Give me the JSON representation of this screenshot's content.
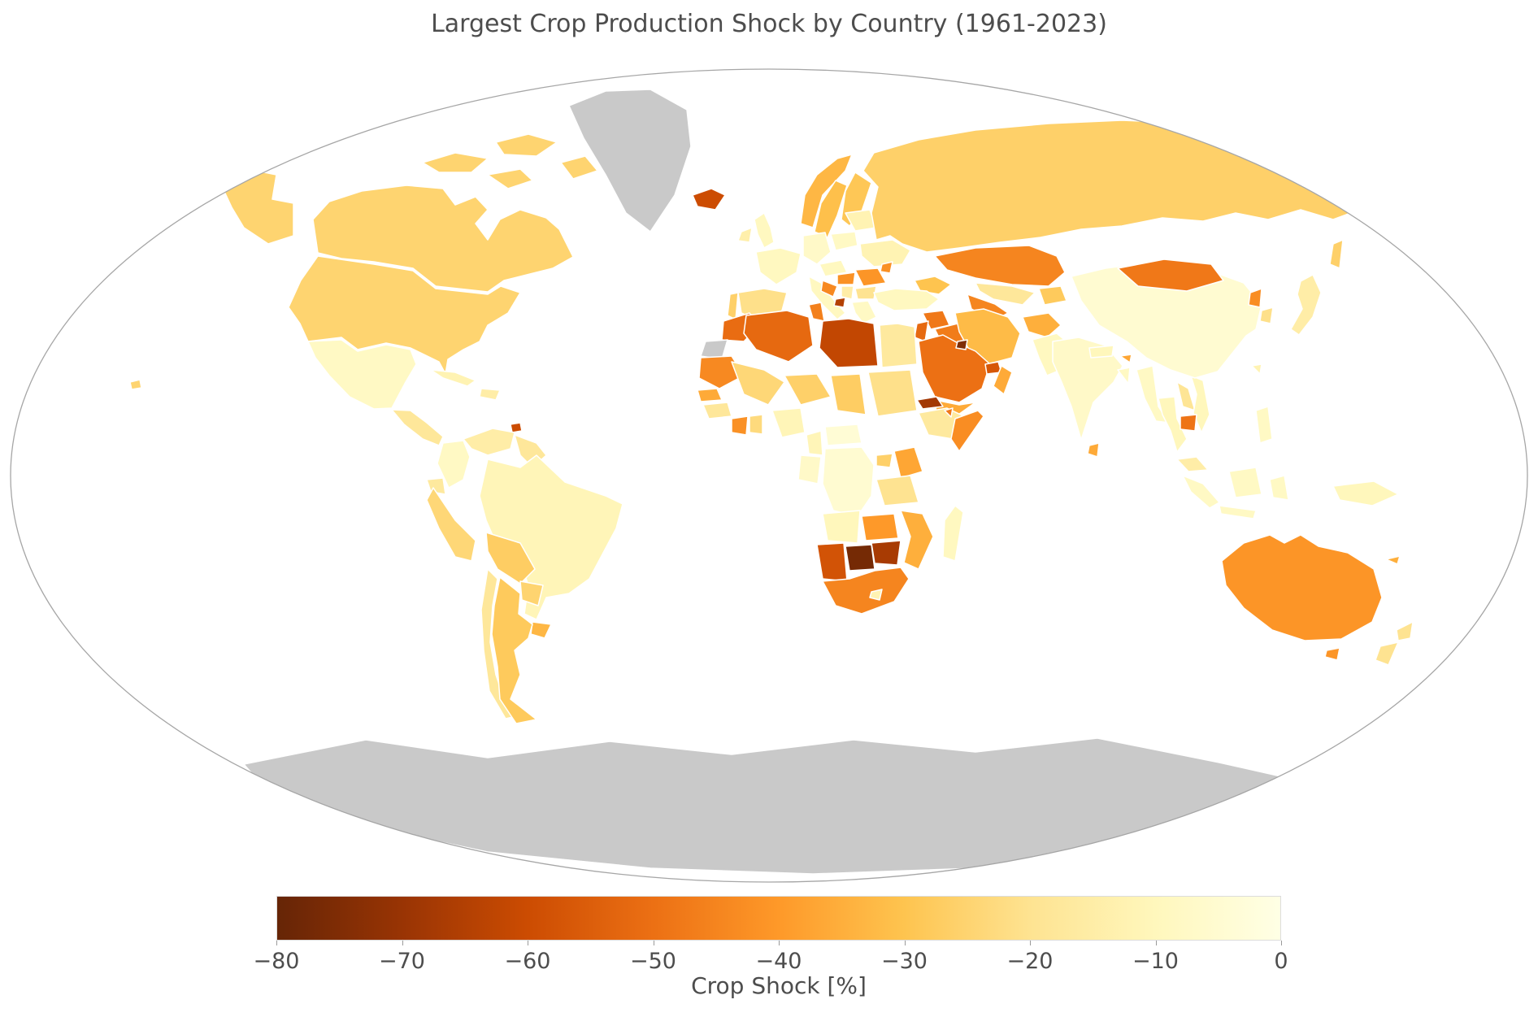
{
  "chart_data": {
    "type": "choropleth_map",
    "title": "Largest Crop Production Shock by Country (1961-2023)",
    "projection": "robinson",
    "units": "percent",
    "value_range": [
      -80,
      0
    ],
    "colorbar": {
      "label": "Crop Shock [%]",
      "orientation": "horizontal",
      "tick_labels": [
        "−80",
        "−70",
        "−60",
        "−50",
        "−40",
        "−30",
        "−20",
        "−10",
        "0"
      ]
    },
    "colormap": {
      "name": "YlOrBr reversed (0 = light cream, -80 = dark brown)",
      "anchors_light_to_dark": [
        "#ffffe5",
        "#fff7bc",
        "#fee391",
        "#fec44f",
        "#fe9929",
        "#ec7014",
        "#cc4c02",
        "#993404",
        "#662506"
      ],
      "no_data_color": "#c9c9c9",
      "ocean_color": "#ffffff",
      "border_color": "#ffffff"
    },
    "countries": {
      "united_states": -25,
      "canada": -25,
      "mexico": -8,
      "guatemala": -15,
      "central_america": -18,
      "cuba": -12,
      "hispaniola": -15,
      "caribbean_small": -60,
      "greenland": null,
      "iceland": -60,
      "venezuela": -15,
      "colombia": -8,
      "guyanas": -18,
      "ecuador": -17,
      "peru": -24,
      "brazil": -11,
      "bolivia": -27,
      "paraguay": -25,
      "chile": -18,
      "argentina": -28,
      "uruguay": -33,
      "united_kingdom": -9,
      "ireland": -14,
      "norway": -33,
      "sweden": -31,
      "finland": -29,
      "denmark": -25,
      "france": -9,
      "germany": -7,
      "poland": -8,
      "belarus_baltics": -12,
      "ukraine": -12,
      "spain": -21,
      "portugal": -26,
      "italy": -9,
      "central_europe": -9,
      "hungary": -42,
      "romania": -41,
      "croatia": -44,
      "serbia": -15,
      "montenegro": -65,
      "bulgaria": -20,
      "greece": -8,
      "moldova": -42,
      "russia": -26,
      "kazakhstan": -45,
      "uzbekistan": -18,
      "turkmenistan": -45,
      "kyrgyzstan_tajikistan": -28,
      "caucasus": -30,
      "turkey": -9,
      "syria": -48,
      "iraq": -47,
      "iran": -32,
      "afghanistan": -35,
      "pakistan": -9,
      "saudi_arabia": -50,
      "kuwait": -75,
      "united_arab_emirates": -57,
      "oman": -36,
      "yemen": -36,
      "jordan_levant": -52,
      "morocco": -51,
      "western_sahara": null,
      "algeria": -52,
      "tunisia": -46,
      "libya": -62,
      "egypt": -17,
      "mauritania": -44,
      "mali": -24,
      "niger": -26,
      "chad": -27,
      "sudan": -21,
      "eritrea": -68,
      "ethiopia": -17,
      "djibouti": -48,
      "somalia": -43,
      "senegal": -36,
      "guinea_group": -18,
      "cote_divoire": -42,
      "ghana": -23,
      "nigeria": -11,
      "cameroon": -11,
      "central_african_republic": -4,
      "congo_gabon": -7,
      "drc": -5,
      "uganda": -26,
      "kenya": -37,
      "tanzania": -20,
      "angola": -10,
      "zambia": -40,
      "mozambique_malawi": -35,
      "zimbabwe": -67,
      "botswana": -77,
      "namibia": -58,
      "south_africa": -45,
      "lesotho": -12,
      "madagascar": -9,
      "india": -7,
      "sri_lanka": -36,
      "nepal": -10,
      "bhutan": -37,
      "bangladesh": -8,
      "myanmar": -8,
      "thailand": -10,
      "laos": -19,
      "vietnam": -10,
      "cambodia": -49,
      "malaysia": -15,
      "indonesia": -8,
      "philippines": -8,
      "taiwan": -12,
      "papua_new_guinea": -10,
      "china": -5,
      "mongolia": -48,
      "north_korea": -43,
      "south_korea": -21,
      "japan": -15,
      "australia": -41,
      "new_zealand": -20,
      "new_caledonia": -35,
      "antarctica": null
    }
  }
}
